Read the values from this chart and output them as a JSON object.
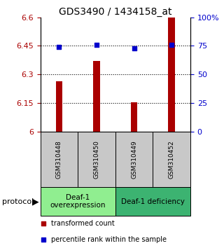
{
  "title": "GDS3490 / 1434158_at",
  "samples": [
    "GSM310448",
    "GSM310450",
    "GSM310449",
    "GSM310452"
  ],
  "bar_values": [
    6.265,
    6.37,
    6.155,
    6.6
  ],
  "percentile_values": [
    74,
    76,
    73,
    76
  ],
  "bar_color": "#aa0000",
  "dot_color": "#0000cc",
  "ylim": [
    6.0,
    6.6
  ],
  "yticks_left": [
    6.0,
    6.15,
    6.3,
    6.45,
    6.6
  ],
  "ytick_labels_right": [
    "0",
    "25",
    "50",
    "75",
    "100%"
  ],
  "ytick_labels_left": [
    "6",
    "6.15",
    "6.3",
    "6.45",
    "6.6"
  ],
  "yticks_right": [
    0,
    25,
    50,
    75,
    100
  ],
  "dotted_lines": [
    6.15,
    6.3,
    6.45
  ],
  "groups": [
    {
      "label": "Deaf-1\noverexpression",
      "samples": [
        0,
        1
      ],
      "color": "#90ee90"
    },
    {
      "label": "Deaf-1 deficiency",
      "samples": [
        2,
        3
      ],
      "color": "#3cb371"
    }
  ],
  "protocol_label": "protocol",
  "legend_items": [
    {
      "color": "#aa0000",
      "label": "transformed count"
    },
    {
      "color": "#0000cc",
      "label": "percentile rank within the sample"
    }
  ],
  "background_color": "#ffffff",
  "sample_box_color": "#c8c8c8"
}
